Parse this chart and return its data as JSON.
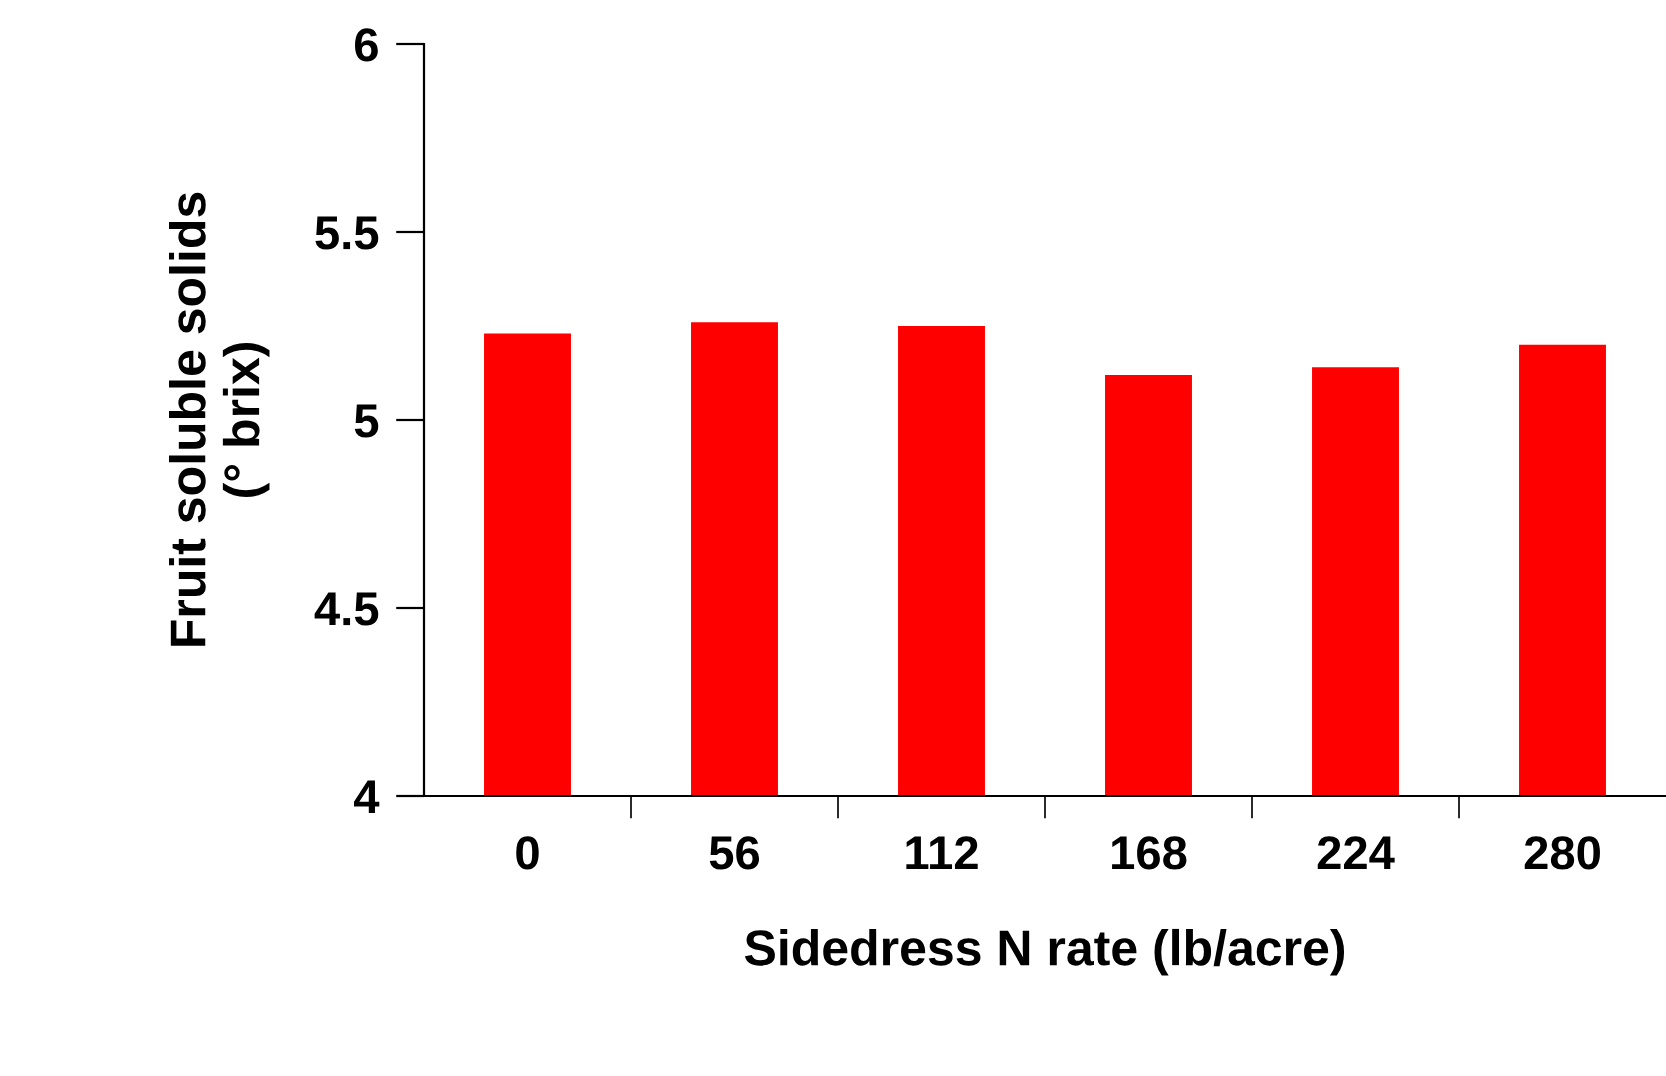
{
  "chart_data": {
    "type": "bar",
    "xlabel": "Sidedress N rate (lb/acre)",
    "ylabel": "Fruit soluble solids\n(° brix)",
    "categories": [
      "0",
      "56",
      "112",
      "168",
      "224",
      "280"
    ],
    "values": [
      5.23,
      5.26,
      5.25,
      5.12,
      5.14,
      5.2
    ],
    "color": "#ff0000",
    "ylim": [
      4,
      6
    ],
    "yticks": [
      4,
      4.5,
      5,
      5.5,
      6
    ],
    "grid": false,
    "legend": false
  }
}
